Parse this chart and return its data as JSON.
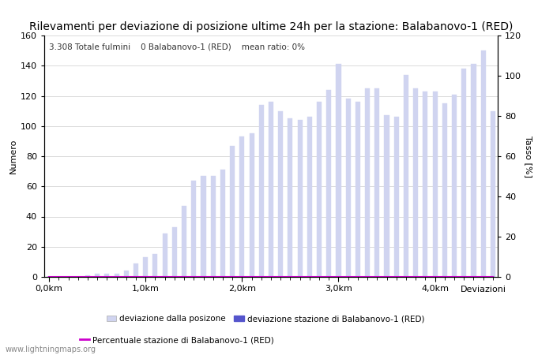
{
  "title": "Rilevamenti per deviazione di posizione ultime 24h per la stazione: Balabanovo-1 (RED)",
  "subtitle": "3.308 Totale fulmini    0 Balabanovo-1 (RED)    mean ratio: 0%",
  "ylabel_left": "Numero",
  "ylabel_right": "Tasso [%]",
  "xlabel": "Deviazioni",
  "watermark": "www.lightningmaps.org",
  "xlim": [
    -0.5,
    46.5
  ],
  "ylim_left": [
    0,
    160
  ],
  "ylim_right": [
    0,
    120
  ],
  "yticks_left": [
    0,
    20,
    40,
    60,
    80,
    100,
    120,
    140,
    160
  ],
  "yticks_right": [
    0,
    20,
    40,
    60,
    80,
    100,
    120
  ],
  "xtick_positions": [
    0,
    10,
    20,
    30,
    40
  ],
  "xtick_labels": [
    "0,0km",
    "1,0km",
    "2,0km",
    "3,0km",
    "4,0km"
  ],
  "bar_color_light": "#d0d4f0",
  "bar_color_dark": "#5555cc",
  "line_color": "#cc00cc",
  "bar_values": [
    0,
    0,
    0,
    0,
    1,
    2,
    2,
    2,
    4,
    9,
    13,
    15,
    29,
    33,
    47,
    64,
    67,
    67,
    71,
    87,
    93,
    95,
    114,
    116,
    110,
    105,
    104,
    106,
    116,
    124,
    141,
    118,
    116,
    125,
    125,
    107,
    106,
    134,
    125,
    123,
    123,
    115,
    121,
    138,
    141,
    150,
    110
  ],
  "bar_values2": [
    0,
    0,
    0,
    0,
    0,
    0,
    0,
    0,
    0,
    0,
    0,
    0,
    0,
    0,
    0,
    0,
    0,
    0,
    0,
    0,
    0,
    0,
    0,
    0,
    0,
    0,
    0,
    0,
    0,
    0,
    0,
    0,
    0,
    0,
    0,
    0,
    0,
    0,
    0,
    0,
    0,
    0,
    0,
    0,
    0,
    0,
    0
  ],
  "legend_label_light": "deviazione dalla posizone",
  "legend_label_dark": "deviazione stazione di Balabanovo-1 (RED)",
  "legend_label_line": "Percentuale stazione di Balabanovo-1 (RED)",
  "background_color": "#ffffff",
  "grid_color": "#cccccc",
  "title_fontsize": 10,
  "axis_fontsize": 8,
  "tick_fontsize": 8
}
